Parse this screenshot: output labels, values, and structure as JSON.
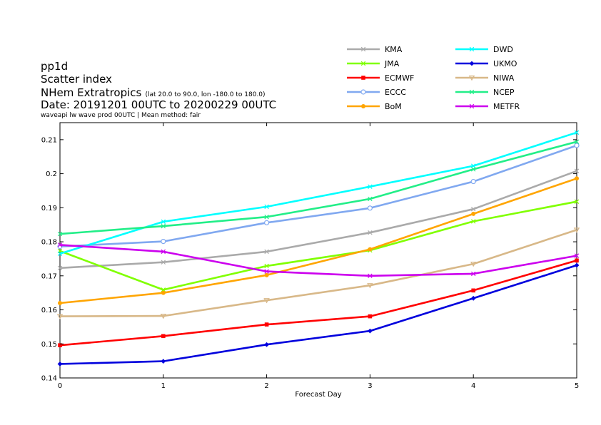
{
  "header": {
    "line1": "pp1d",
    "line2": "Scatter index",
    "line3": "NHem Extratropics",
    "line3_detail": "(lat  20.0 to 90.0, lon  -180.0 to  180.0)",
    "line4": "Date: 20191201 00UTC to 20200229 00UTC",
    "line5": "waveapi lw wave prod 00UTC | Mean method: fair"
  },
  "chart_data": {
    "type": "line",
    "xlabel": "Forecast Day",
    "ylabel": "",
    "x": [
      0,
      1,
      2,
      3,
      4,
      5
    ],
    "xlim": [
      0,
      5
    ],
    "ylim": [
      0.14,
      0.215
    ],
    "x_ticks": [
      "0",
      "1",
      "2",
      "3",
      "4",
      "5"
    ],
    "y_ticks": [
      0.14,
      0.15,
      0.16,
      0.17,
      0.18,
      0.19,
      0.2,
      0.21
    ],
    "y_tick_labels": [
      "0.14",
      "0.15",
      "0.16",
      "0.17",
      "0.18",
      "0.19",
      "0.2",
      "0.21"
    ],
    "grid": false,
    "legend": "top-right",
    "series": [
      {
        "name": "KMA",
        "color": "#aaaaaa",
        "marker": "x",
        "values": [
          0.1723,
          0.174,
          0.1771,
          0.1827,
          0.1896,
          0.2008
        ]
      },
      {
        "name": "JMA",
        "color": "#80ff00",
        "marker": "x",
        "values": [
          0.1773,
          0.1659,
          0.1729,
          0.1775,
          0.186,
          0.1918
        ]
      },
      {
        "name": "ECMWF",
        "color": "#ff0000",
        "marker": "square",
        "values": [
          0.1496,
          0.1523,
          0.1557,
          0.1581,
          0.1657,
          0.1745
        ]
      },
      {
        "name": "ECCC",
        "color": "#80a8f0",
        "marker": "circle",
        "values": [
          0.1786,
          0.1801,
          0.1856,
          0.1899,
          0.1977,
          0.2083
        ]
      },
      {
        "name": "BoM",
        "color": "#ffa500",
        "marker": "dot",
        "values": [
          0.162,
          0.165,
          0.1702,
          0.1778,
          0.1882,
          0.1986
        ]
      },
      {
        "name": "DWD",
        "color": "#00ffff",
        "marker": "x",
        "values": [
          0.1765,
          0.1859,
          0.1903,
          0.1962,
          0.2023,
          0.2121
        ]
      },
      {
        "name": "UKMO",
        "color": "#0000dd",
        "marker": "diamond",
        "values": [
          0.1441,
          0.1449,
          0.1498,
          0.1538,
          0.1634,
          0.1731
        ]
      },
      {
        "name": "NIWA",
        "color": "#d8b888",
        "marker": "triangle",
        "values": [
          0.1581,
          0.1582,
          0.1628,
          0.1672,
          0.1735,
          0.1835
        ]
      },
      {
        "name": "NCEP",
        "color": "#22ee88",
        "marker": "x",
        "values": [
          0.1823,
          0.1846,
          0.1873,
          0.1926,
          0.2013,
          0.2094
        ]
      },
      {
        "name": "METFR",
        "color": "#cc00ee",
        "marker": "x",
        "values": [
          0.1791,
          0.1771,
          0.1713,
          0.17,
          0.1706,
          0.1759
        ]
      }
    ]
  }
}
